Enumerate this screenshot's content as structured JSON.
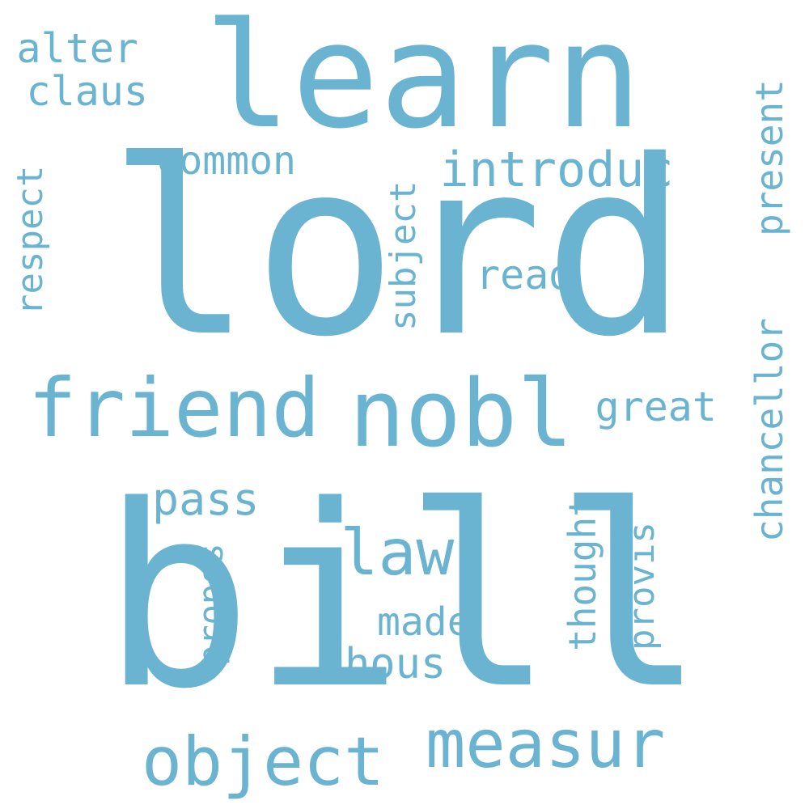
{
  "word_cloud": {
    "color": "#6ab4d1",
    "words": [
      {
        "text": "lord",
        "rotated": false
      },
      {
        "text": "bill",
        "rotated": false
      },
      {
        "text": "learn",
        "rotated": false
      },
      {
        "text": "nobl",
        "rotated": false
      },
      {
        "text": "friend",
        "rotated": false
      },
      {
        "text": "measur",
        "rotated": false
      },
      {
        "text": "object",
        "rotated": false
      },
      {
        "text": "law",
        "rotated": false
      },
      {
        "text": "introduc",
        "rotated": false
      },
      {
        "text": "common",
        "rotated": false
      },
      {
        "text": "alter",
        "rotated": false
      },
      {
        "text": "claus",
        "rotated": false
      },
      {
        "text": "pass",
        "rotated": false
      },
      {
        "text": "great",
        "rotated": false
      },
      {
        "text": "read",
        "rotated": false
      },
      {
        "text": "made",
        "rotated": false
      },
      {
        "text": "hous",
        "rotated": false
      },
      {
        "text": "present",
        "rotated": true
      },
      {
        "text": "chancellor",
        "rotated": true
      },
      {
        "text": "respect",
        "rotated": true
      },
      {
        "text": "subject",
        "rotated": true
      },
      {
        "text": "propos",
        "rotated": true
      },
      {
        "text": "thought",
        "rotated": true
      },
      {
        "text": "provis",
        "rotated": true
      }
    ]
  }
}
